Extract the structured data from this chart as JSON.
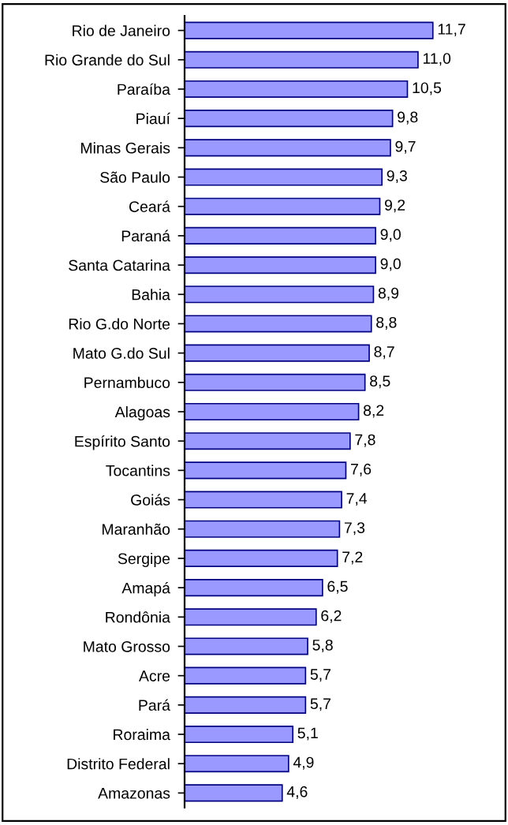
{
  "chart_data": {
    "type": "bar",
    "orientation": "horizontal",
    "categories": [
      "Rio de Janeiro",
      "Rio Grande do Sul",
      "Paraíba",
      "Piauí",
      "Minas Gerais",
      "São Paulo",
      "Ceará",
      "Paraná",
      "Santa Catarina",
      "Bahia",
      "Rio G.do Norte",
      "Mato G.do Sul",
      "Pernambuco",
      "Alagoas",
      "Espírito Santo",
      "Tocantins",
      "Goiás",
      "Maranhão",
      "Sergipe",
      "Amapá",
      "Rondônia",
      "Mato Grosso",
      "Acre",
      "Pará",
      "Roraima",
      "Distrito Federal",
      "Amazonas"
    ],
    "values": [
      11.7,
      11.0,
      10.5,
      9.8,
      9.7,
      9.3,
      9.2,
      9.0,
      9.0,
      8.9,
      8.8,
      8.7,
      8.5,
      8.2,
      7.8,
      7.6,
      7.4,
      7.3,
      7.2,
      6.5,
      6.2,
      5.8,
      5.7,
      5.7,
      5.1,
      4.9,
      4.6
    ],
    "value_labels": [
      "11,7",
      "11,0",
      "10,5",
      "9,8",
      "9,7",
      "9,3",
      "9,2",
      "9,0",
      "9,0",
      "8,9",
      "8,8",
      "8,7",
      "8,5",
      "8,2",
      "7,8",
      "7,6",
      "7,4",
      "7,3",
      "7,2",
      "6,5",
      "6,2",
      "5,8",
      "5,7",
      "5,7",
      "5,1",
      "4,9",
      "4,6"
    ],
    "color": "#9999ff",
    "grid": false,
    "legend": false
  }
}
